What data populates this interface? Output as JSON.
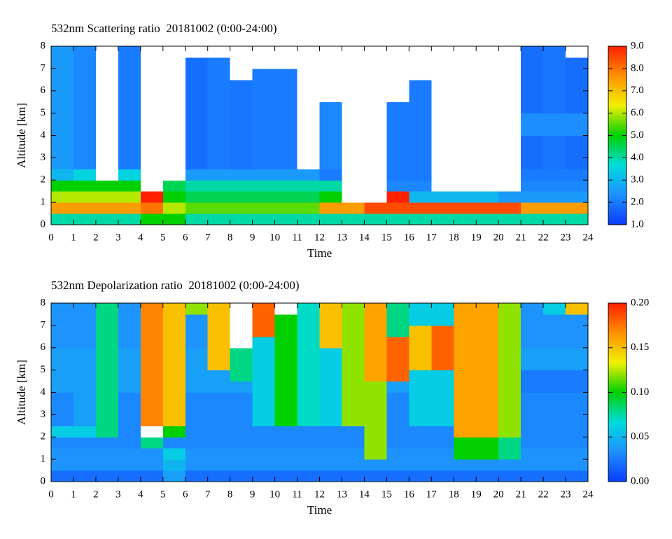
{
  "chart_data": [
    {
      "type": "heatmap",
      "title": "532nm Scattering ratio  20181002 (0:00-24:00)",
      "xlabel": "Time",
      "ylabel": "Altitude [km]",
      "xbins": [
        0,
        1,
        2,
        3,
        4,
        5,
        6,
        7,
        8,
        9,
        10,
        11,
        12,
        13,
        14,
        15,
        16,
        17,
        18,
        19,
        20,
        21,
        22,
        23,
        24
      ],
      "ybins": [
        0,
        0.5,
        1,
        1.5,
        2,
        2.5,
        3,
        3.5,
        4,
        4.5,
        5,
        5.5,
        6,
        6.5,
        7,
        7.5,
        8
      ],
      "z": [
        [
          4,
          4,
          4,
          4,
          5,
          5,
          4,
          4,
          4,
          4,
          4,
          4,
          4,
          4,
          4,
          4,
          4,
          4,
          4,
          4,
          4,
          4,
          4,
          4
        ],
        [
          7.5,
          7.5,
          7.5,
          7.5,
          8,
          6,
          5.5,
          5.5,
          5.5,
          5.5,
          5.5,
          5.5,
          7.5,
          7.5,
          8.5,
          8.5,
          8.5,
          8.5,
          8.5,
          8.5,
          8.5,
          7.5,
          7.5,
          7.5
        ],
        [
          6,
          6,
          6,
          6,
          9,
          5,
          4.5,
          4.5,
          4.5,
          4.5,
          4.5,
          4.5,
          5,
          10,
          10,
          9,
          3,
          3,
          3,
          3,
          2.5,
          2.5,
          2.5,
          2.5
        ],
        [
          5,
          5,
          5,
          5,
          10,
          4.5,
          4,
          4,
          4,
          4,
          4,
          4,
          4,
          10,
          10,
          2.2,
          2.2,
          10,
          10,
          10,
          10,
          2.2,
          2.2,
          2.2
        ],
        [
          3,
          3.5,
          10,
          3.5,
          10,
          10,
          2.5,
          2.5,
          2.5,
          2.5,
          2.5,
          2.5,
          2,
          10,
          10,
          2,
          2,
          10,
          10,
          10,
          10,
          2,
          2,
          2
        ],
        [
          2.5,
          2.2,
          10,
          2.0,
          10,
          10,
          1.8,
          2.0,
          1.9,
          2.0,
          2.0,
          10,
          2.2,
          10,
          10,
          2.0,
          2.0,
          10,
          10,
          10,
          10,
          1.8,
          1.9,
          1.8
        ],
        [
          2.5,
          2.2,
          10,
          2.0,
          10,
          10,
          1.8,
          2.0,
          1.9,
          2.0,
          2.0,
          10,
          2.2,
          10,
          10,
          2.0,
          2.0,
          10,
          10,
          10,
          10,
          1.8,
          1.9,
          1.8
        ],
        [
          2.5,
          2.2,
          10,
          2.0,
          10,
          10,
          1.8,
          2.0,
          1.9,
          2.0,
          2.0,
          10,
          2.2,
          10,
          10,
          2.0,
          2.0,
          10,
          10,
          10,
          10,
          1.8,
          1.9,
          1.8
        ],
        [
          2.5,
          2.2,
          10,
          2.0,
          10,
          10,
          1.8,
          2.0,
          1.9,
          2.0,
          2.0,
          10,
          2.2,
          10,
          10,
          2.0,
          2.0,
          10,
          10,
          10,
          10,
          2.3,
          2.3,
          2.3
        ],
        [
          2.5,
          2.2,
          10,
          2.0,
          10,
          10,
          1.8,
          2.0,
          1.9,
          2.0,
          2.0,
          10,
          2.2,
          10,
          10,
          2.0,
          2.0,
          10,
          10,
          10,
          10,
          2.3,
          2.3,
          2.3
        ],
        [
          2.5,
          2.2,
          10,
          2.0,
          10,
          10,
          1.8,
          2.0,
          1.9,
          2.0,
          2.0,
          10,
          2.2,
          10,
          10,
          2.0,
          2.0,
          10,
          10,
          10,
          10,
          1.8,
          1.9,
          1.8
        ],
        [
          2.5,
          2.2,
          10,
          2.0,
          10,
          10,
          1.8,
          2.0,
          1.9,
          2.0,
          2.0,
          10,
          10,
          10,
          10,
          10,
          2.0,
          10,
          10,
          10,
          10,
          1.8,
          1.9,
          1.8
        ],
        [
          2.5,
          2.2,
          10,
          2.0,
          10,
          10,
          1.8,
          2.0,
          1.9,
          2.0,
          2.0,
          10,
          10,
          10,
          10,
          10,
          2.0,
          10,
          10,
          10,
          10,
          1.8,
          1.9,
          1.8
        ],
        [
          2.5,
          2.2,
          10,
          2.0,
          10,
          10,
          1.8,
          2.0,
          10,
          2.0,
          2.0,
          10,
          10,
          10,
          10,
          10,
          10,
          10,
          10,
          10,
          10,
          1.8,
          1.9,
          1.8
        ],
        [
          2.5,
          2.2,
          10,
          2.0,
          10,
          10,
          1.8,
          2.0,
          10,
          10,
          10,
          10,
          10,
          10,
          10,
          10,
          10,
          10,
          10,
          10,
          10,
          1.8,
          1.9,
          1.8
        ],
        [
          2.5,
          2.2,
          10,
          2.0,
          10,
          10,
          10,
          10,
          10,
          10,
          10,
          10,
          10,
          10,
          10,
          10,
          10,
          10,
          10,
          10,
          10,
          1.8,
          1.9,
          10
        ]
      ],
      "xlim": [
        0,
        24
      ],
      "xticks": [
        0,
        1,
        2,
        3,
        4,
        5,
        6,
        7,
        8,
        9,
        10,
        11,
        12,
        13,
        14,
        15,
        16,
        17,
        18,
        19,
        20,
        21,
        22,
        23,
        24
      ],
      "ylim": [
        0,
        8
      ],
      "yticks": [
        0,
        1,
        2,
        3,
        4,
        5,
        6,
        7,
        8
      ],
      "colorbar": {
        "lim": [
          1,
          9
        ],
        "ticks": [
          {
            "value": 1,
            "label": "1.0"
          },
          {
            "value": 2,
            "label": "2.0"
          },
          {
            "value": 3,
            "label": "3.0"
          },
          {
            "value": 4,
            "label": "4.0"
          },
          {
            "value": 5,
            "label": "5.0"
          },
          {
            "value": 6,
            "label": "6.0"
          },
          {
            "value": 7,
            "label": "7.0"
          },
          {
            "value": 8,
            "label": "8.0"
          },
          {
            "value": 9,
            "label": "9.0"
          }
        ],
        "colors": [
          "#0a3cff",
          "#1e90ff",
          "#00dcdc",
          "#00d000",
          "#f0f000",
          "#ff9000",
          "#ff2000"
        ],
        "over_color": "#ffffff"
      }
    },
    {
      "type": "heatmap",
      "title": "532nm Depolarization ratio  20181002 (0:00-24:00)",
      "xlabel": "Time",
      "ylabel": "Altitude [km]",
      "xbins": [
        0,
        1,
        2,
        3,
        4,
        5,
        6,
        7,
        8,
        9,
        10,
        11,
        12,
        13,
        14,
        15,
        16,
        17,
        18,
        19,
        20,
        21,
        22,
        23,
        24
      ],
      "ybins": [
        0,
        0.5,
        1,
        1.5,
        2,
        2.5,
        3,
        3.5,
        4,
        4.5,
        5,
        5.5,
        6,
        6.5,
        7,
        7.5,
        8
      ],
      "z": [
        [
          0.02,
          0.02,
          0.02,
          0.02,
          0.02,
          0.04,
          0.02,
          0.02,
          0.02,
          0.02,
          0.02,
          0.02,
          0.02,
          0.02,
          0.02,
          0.02,
          0.02,
          0.02,
          0.02,
          0.02,
          0.02,
          0.02,
          0.02,
          0.02
        ],
        [
          0.035,
          0.035,
          0.035,
          0.035,
          0.035,
          0.05,
          0.035,
          0.035,
          0.035,
          0.035,
          0.035,
          0.035,
          0.035,
          0.035,
          0.035,
          0.035,
          0.035,
          0.035,
          0.035,
          0.035,
          0.035,
          0.035,
          0.035,
          0.035
        ],
        [
          0.035,
          0.035,
          0.035,
          0.035,
          0.035,
          0.06,
          0.035,
          0.035,
          0.035,
          0.035,
          0.035,
          0.035,
          0.035,
          0.035,
          0.12,
          0.035,
          0.035,
          0.035,
          0.1,
          0.1,
          0.08,
          0.035,
          0.035,
          0.035
        ],
        [
          0.03,
          0.03,
          0.03,
          0.03,
          0.08,
          0.03,
          0.03,
          0.03,
          0.03,
          0.03,
          0.03,
          0.03,
          0.03,
          0.03,
          0.12,
          0.03,
          0.03,
          0.03,
          0.1,
          0.1,
          0.08,
          0.03,
          0.03,
          0.03
        ],
        [
          0.06,
          0.06,
          0.08,
          0.03,
          0.25,
          0.1,
          0.03,
          0.03,
          0.03,
          0.03,
          0.03,
          0.03,
          0.03,
          0.03,
          0.12,
          0.03,
          0.03,
          0.03,
          0.16,
          0.16,
          0.12,
          0.03,
          0.03,
          0.03
        ],
        [
          0.03,
          0.04,
          0.08,
          0.03,
          0.17,
          0.15,
          0.03,
          0.03,
          0.03,
          0.06,
          0.1,
          0.07,
          0.06,
          0.12,
          0.12,
          0.03,
          0.06,
          0.06,
          0.16,
          0.16,
          0.12,
          0.03,
          0.03,
          0.03
        ],
        [
          0.03,
          0.04,
          0.08,
          0.03,
          0.17,
          0.15,
          0.03,
          0.03,
          0.03,
          0.06,
          0.1,
          0.07,
          0.06,
          0.12,
          0.12,
          0.03,
          0.06,
          0.06,
          0.16,
          0.16,
          0.12,
          0.03,
          0.03,
          0.03
        ],
        [
          0.03,
          0.04,
          0.08,
          0.03,
          0.17,
          0.15,
          0.03,
          0.03,
          0.03,
          0.06,
          0.1,
          0.07,
          0.06,
          0.12,
          0.12,
          0.03,
          0.06,
          0.06,
          0.16,
          0.16,
          0.12,
          0.03,
          0.03,
          0.03
        ],
        [
          0.04,
          0.04,
          0.08,
          0.04,
          0.17,
          0.15,
          0.04,
          0.04,
          0.04,
          0.06,
          0.1,
          0.07,
          0.06,
          0.12,
          0.12,
          0.04,
          0.06,
          0.06,
          0.16,
          0.16,
          0.12,
          0.025,
          0.025,
          0.025
        ],
        [
          0.04,
          0.04,
          0.08,
          0.04,
          0.17,
          0.15,
          0.04,
          0.04,
          0.08,
          0.06,
          0.1,
          0.07,
          0.06,
          0.12,
          0.16,
          0.18,
          0.06,
          0.06,
          0.16,
          0.16,
          0.12,
          0.025,
          0.025,
          0.025
        ],
        [
          0.04,
          0.04,
          0.08,
          0.04,
          0.17,
          0.15,
          0.04,
          0.15,
          0.08,
          0.06,
          0.1,
          0.07,
          0.06,
          0.12,
          0.16,
          0.18,
          0.15,
          0.18,
          0.16,
          0.16,
          0.12,
          0.04,
          0.04,
          0.04
        ],
        [
          0.04,
          0.04,
          0.08,
          0.04,
          0.17,
          0.15,
          0.04,
          0.15,
          0.08,
          0.06,
          0.1,
          0.07,
          0.06,
          0.12,
          0.16,
          0.18,
          0.15,
          0.18,
          0.16,
          0.16,
          0.12,
          0.04,
          0.04,
          0.04
        ],
        [
          0.035,
          0.035,
          0.08,
          0.035,
          0.17,
          0.15,
          0.035,
          0.15,
          0.25,
          0.06,
          0.1,
          0.07,
          0.15,
          0.12,
          0.16,
          0.18,
          0.15,
          0.18,
          0.16,
          0.16,
          0.12,
          0.035,
          0.035,
          0.035
        ],
        [
          0.035,
          0.035,
          0.08,
          0.035,
          0.17,
          0.15,
          0.035,
          0.15,
          0.25,
          0.18,
          0.1,
          0.07,
          0.15,
          0.12,
          0.16,
          0.08,
          0.15,
          0.18,
          0.16,
          0.16,
          0.12,
          0.035,
          0.035,
          0.035
        ],
        [
          0.035,
          0.035,
          0.08,
          0.035,
          0.17,
          0.15,
          0.035,
          0.15,
          0.25,
          0.18,
          0.1,
          0.07,
          0.15,
          0.12,
          0.16,
          0.08,
          0.06,
          0.06,
          0.16,
          0.16,
          0.12,
          0.035,
          0.035,
          0.035
        ],
        [
          0.035,
          0.035,
          0.08,
          0.035,
          0.17,
          0.15,
          0.12,
          0.15,
          0.25,
          0.18,
          0.25,
          0.07,
          0.15,
          0.12,
          0.16,
          0.08,
          0.06,
          0.06,
          0.16,
          0.16,
          0.12,
          0.035,
          0.06,
          0.15
        ]
      ],
      "xlim": [
        0,
        24
      ],
      "xticks": [
        0,
        1,
        2,
        3,
        4,
        5,
        6,
        7,
        8,
        9,
        10,
        11,
        12,
        13,
        14,
        15,
        16,
        17,
        18,
        19,
        20,
        21,
        22,
        23,
        24
      ],
      "ylim": [
        0,
        8
      ],
      "yticks": [
        0,
        1,
        2,
        3,
        4,
        5,
        6,
        7,
        8
      ],
      "colorbar": {
        "lim": [
          0,
          0.2
        ],
        "ticks": [
          {
            "value": 0,
            "label": "0.00"
          },
          {
            "value": 0.05,
            "label": "0.05"
          },
          {
            "value": 0.1,
            "label": "0.10"
          },
          {
            "value": 0.15,
            "label": "0.15"
          },
          {
            "value": 0.2,
            "label": "0.20"
          }
        ],
        "colors": [
          "#0a3cff",
          "#1e90ff",
          "#00dcdc",
          "#00d000",
          "#f0f000",
          "#ff9000",
          "#ff2000"
        ],
        "over_color": "#ffffff"
      }
    }
  ]
}
